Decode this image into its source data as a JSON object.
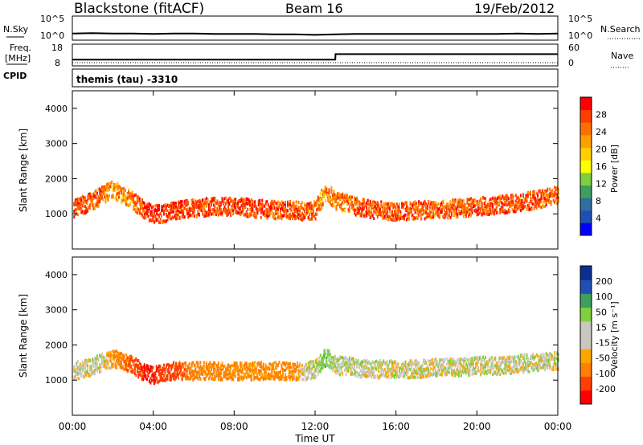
{
  "header": {
    "station": "Blackstone (fitACF)",
    "beam": "Beam 16",
    "date": "19/Feb/2012"
  },
  "top_panel": {
    "left_label": "N.Sky",
    "right_label": "N.Search",
    "left_ticks": [
      "10^5",
      "10^0"
    ],
    "right_ticks": [
      "10^5",
      "10^0"
    ]
  },
  "freq_panel": {
    "left_label_1": "Freq.",
    "left_label_2": "[MHz]",
    "right_label": "Nave",
    "left_ticks": [
      "18",
      "8"
    ],
    "right_ticks": [
      "60",
      "0"
    ]
  },
  "cpid_panel": {
    "label": "CPID",
    "text": "themis (tau) -3310"
  },
  "x_axis": {
    "ticks": [
      "00:00",
      "04:00",
      "08:00",
      "12:00",
      "16:00",
      "20:00",
      "00:00"
    ],
    "label": "Time UT"
  },
  "colors": {
    "power": [
      "#0000ff",
      "#1f4fb4",
      "#2f6fa0",
      "#3f9f5f",
      "#7fcf3f",
      "#ffff00",
      "#ffcf00",
      "#ff9f00",
      "#ff6f00",
      "#ff3f00",
      "#ff0000"
    ],
    "velocity": [
      "#ff0000",
      "#ff3f00",
      "#ff7f00",
      "#ffa500",
      "#c8c8c0",
      "#c8c8c0",
      "#7fcf3f",
      "#3f9f5f",
      "#1f4fb4",
      "#0a2f8f"
    ]
  },
  "chart_data": [
    {
      "type": "line",
      "title": "N.Sky / N.Search",
      "x": [
        0,
        1,
        2,
        3,
        4,
        5,
        6,
        7,
        8,
        9,
        10,
        11,
        12,
        13,
        14,
        15,
        16,
        17,
        18,
        19,
        20,
        21,
        22,
        23,
        24
      ],
      "series": [
        {
          "name": "N.Sky",
          "values": [
            1.2,
            1.3,
            1.2,
            1.2,
            1.1,
            1.2,
            1.2,
            1.1,
            1.1,
            1.1,
            1.0,
            1.0,
            0.9,
            1.0,
            1.1,
            1.1,
            1.1,
            1.1,
            1.1,
            1.1,
            1.1,
            1.1,
            1.2,
            1.1,
            1.2
          ]
        }
      ]
    },
    {
      "type": "line",
      "title": "Freq. [MHz] / Nave",
      "x": [
        0,
        13,
        13.01,
        24
      ],
      "series": [
        {
          "name": "Freq.",
          "values": [
            10.5,
            10.5,
            13.5,
            13.5
          ]
        },
        {
          "name": "Nave",
          "values": [
            0,
            0,
            0,
            0
          ]
        }
      ]
    },
    {
      "type": "heatmap",
      "title": "Power [dB]",
      "xlabel": "Time UT",
      "ylabel": "Slant Range [km]",
      "xlim": [
        0,
        24
      ],
      "ylim": [
        0,
        4500
      ],
      "y_ticks": [
        1000,
        2000,
        3000,
        4000
      ],
      "colorbar": {
        "label": "Power [dB]",
        "ticks": [
          4,
          8,
          12,
          16,
          20,
          24,
          28
        ]
      },
      "band_x": [
        0,
        0.5,
        1,
        1.5,
        2,
        2.5,
        3,
        3.5,
        4,
        4.5,
        5,
        6,
        7,
        8,
        9,
        10,
        11,
        11.5,
        12,
        12.5,
        13,
        13.5,
        14,
        14.5,
        15,
        16,
        17,
        18,
        19,
        20,
        21,
        22,
        23,
        24
      ],
      "band_center_km": [
        1200,
        1300,
        1400,
        1600,
        1750,
        1550,
        1400,
        1150,
        1050,
        1050,
        1150,
        1200,
        1250,
        1250,
        1200,
        1150,
        1150,
        1100,
        1150,
        1700,
        1400,
        1350,
        1250,
        1200,
        1150,
        1100,
        1150,
        1150,
        1200,
        1250,
        1300,
        1350,
        1450,
        1600
      ],
      "band_power_db": [
        26,
        26,
        25,
        24,
        22,
        22,
        24,
        27,
        28,
        28,
        27,
        26,
        26,
        26,
        26,
        26,
        26,
        25,
        24,
        22,
        24,
        24,
        26,
        26,
        26,
        26,
        25,
        25,
        25,
        26,
        26,
        26,
        26,
        24
      ]
    },
    {
      "type": "heatmap",
      "title": "Velocity [m s^-1]",
      "xlabel": "Time UT",
      "ylabel": "Slant Range [km]",
      "xlim": [
        0,
        24
      ],
      "ylim": [
        0,
        4500
      ],
      "y_ticks": [
        1000,
        2000,
        3000,
        4000
      ],
      "colorbar": {
        "label": "Velocity [m s⁻¹]",
        "ticks": [
          -200,
          -100,
          -50,
          -15,
          15,
          50,
          100,
          200
        ]
      },
      "band_x": [
        0,
        0.5,
        1,
        1.5,
        2,
        2.5,
        3,
        3.5,
        4,
        4.5,
        5,
        6,
        7,
        8,
        9,
        10,
        11,
        11.5,
        12,
        12.5,
        13,
        13.5,
        14,
        14.5,
        15,
        16,
        17,
        18,
        19,
        20,
        21,
        22,
        23,
        24
      ],
      "band_center_km": [
        1300,
        1350,
        1450,
        1550,
        1650,
        1550,
        1450,
        1250,
        1200,
        1250,
        1300,
        1300,
        1300,
        1300,
        1300,
        1300,
        1300,
        1300,
        1350,
        1700,
        1450,
        1450,
        1400,
        1350,
        1350,
        1350,
        1350,
        1400,
        1400,
        1450,
        1450,
        1500,
        1550,
        1600
      ],
      "band_velocity": [
        0,
        0,
        0,
        0,
        -60,
        -80,
        -120,
        -200,
        -200,
        -160,
        -120,
        -70,
        -60,
        -60,
        -60,
        -60,
        -60,
        0,
        0,
        40,
        0,
        0,
        0,
        0,
        0,
        0,
        0,
        0,
        0,
        0,
        0,
        0,
        0,
        0
      ]
    }
  ]
}
